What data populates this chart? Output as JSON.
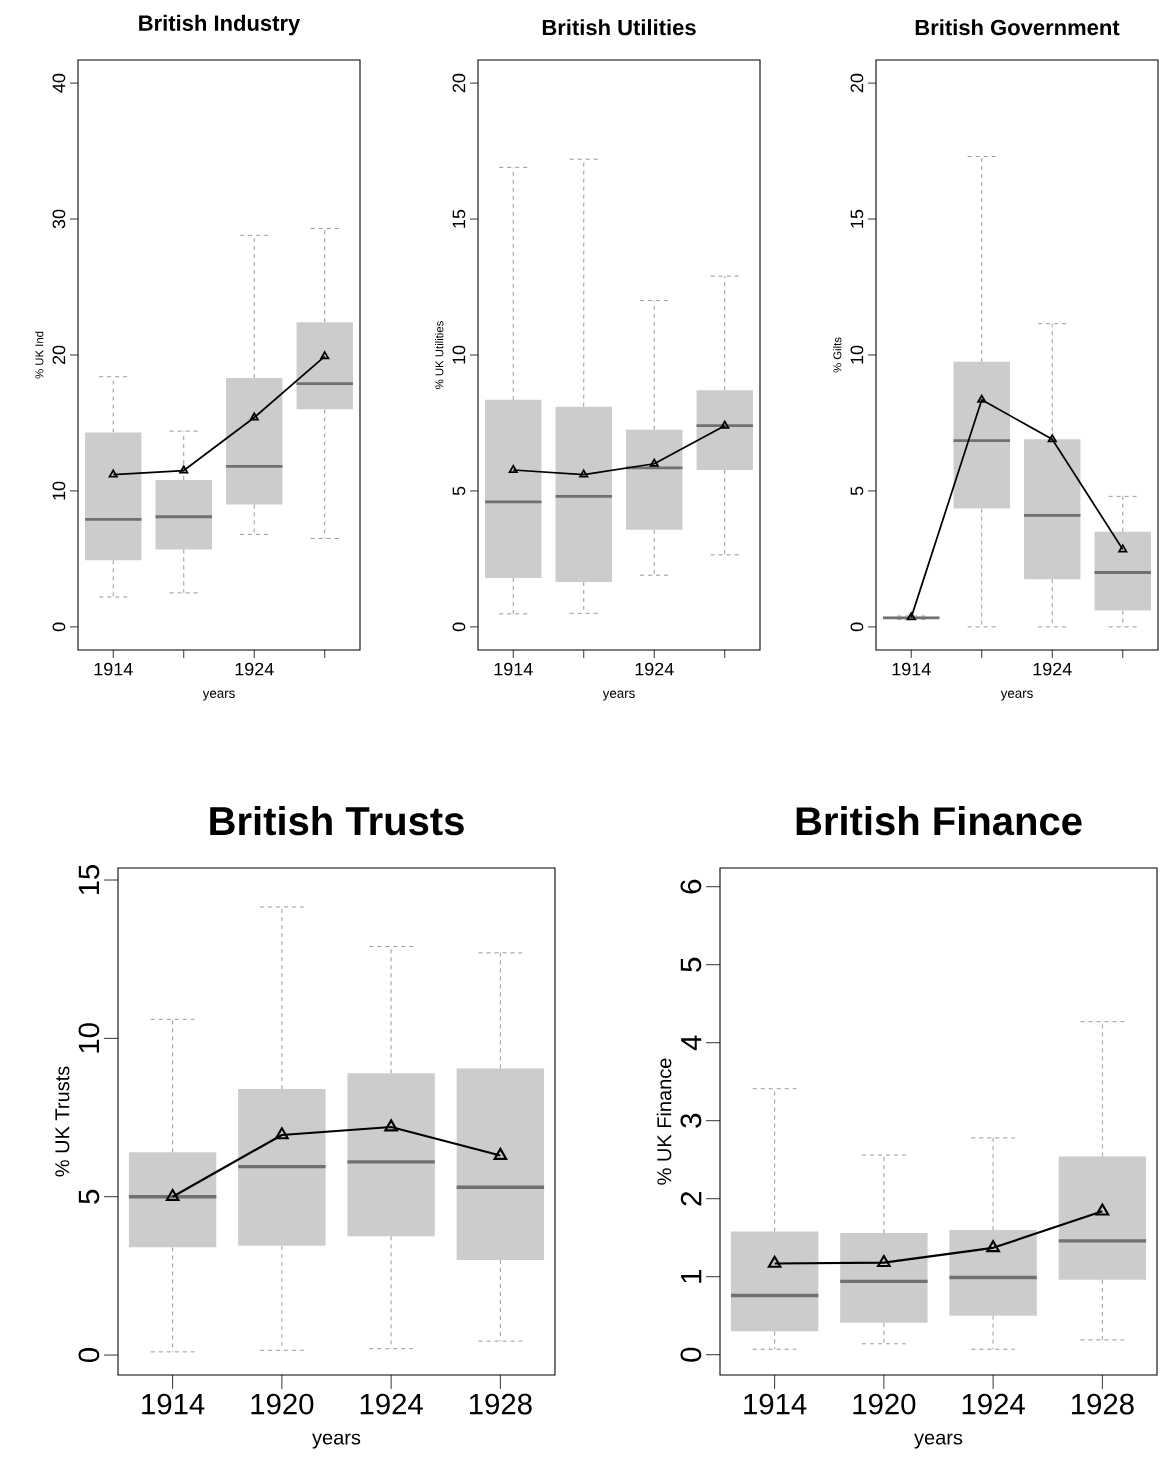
{
  "chart_data": [
    {
      "type": "box",
      "title": "British Industry",
      "xlabel": "years",
      "ylabel": "% UK Ind",
      "categories": [
        "1914",
        null,
        "1924",
        null
      ],
      "ylim": [
        -1.7,
        41.7
      ],
      "yticks": [
        0,
        10,
        20,
        30,
        40
      ],
      "series": [
        {
          "type": "box",
          "color": "#cccccc",
          "boxes": [
            {
              "low": 2.2,
              "q1": 4.9,
              "median": 7.9,
              "q3": 14.3,
              "high": 18.4
            },
            {
              "low": 2.5,
              "q1": 5.7,
              "median": 8.1,
              "q3": 10.8,
              "high": 14.4
            },
            {
              "low": 6.8,
              "q1": 9.0,
              "median": 11.8,
              "q3": 18.3,
              "high": 28.8
            },
            {
              "low": 6.5,
              "q1": 16.0,
              "median": 17.9,
              "q3": 22.4,
              "high": 29.3
            }
          ]
        },
        {
          "type": "line",
          "color": "#000000",
          "marker": "triangle",
          "values": [
            11.2,
            11.5,
            15.4,
            19.9
          ]
        }
      ]
    },
    {
      "type": "box",
      "title": "British Utilities",
      "xlabel": "years",
      "ylabel": "% UK Utilities",
      "categories": [
        "1914",
        null,
        "1924",
        null
      ],
      "ylim": [
        -0.85,
        20.85
      ],
      "yticks": [
        0,
        5,
        10,
        15,
        20
      ],
      "series": [
        {
          "type": "box",
          "color": "#cccccc",
          "boxes": [
            {
              "low": 0.48,
              "q1": 1.8,
              "median": 4.6,
              "q3": 8.35,
              "high": 16.9
            },
            {
              "low": 0.5,
              "q1": 1.65,
              "median": 4.8,
              "q3": 8.1,
              "high": 17.2
            },
            {
              "low": 1.9,
              "q1": 3.57,
              "median": 5.85,
              "q3": 7.25,
              "high": 12.0
            },
            {
              "low": 2.65,
              "q1": 5.77,
              "median": 7.4,
              "q3": 8.7,
              "high": 12.9
            }
          ]
        },
        {
          "type": "line",
          "color": "#000000",
          "marker": "triangle",
          "values": [
            5.77,
            5.6,
            6.0,
            7.4
          ]
        }
      ]
    },
    {
      "type": "box",
      "title": "British Government",
      "xlabel": "years",
      "ylabel": "% Gilts",
      "categories": [
        "1914",
        null,
        "1924",
        null
      ],
      "ylim": [
        -0.85,
        20.85
      ],
      "yticks": [
        0,
        5,
        10,
        15,
        20
      ],
      "series": [
        {
          "type": "box",
          "color": "#cccccc",
          "boxes": [
            {
              "low": 0.28,
              "q1": 0.3,
              "median": 0.33,
              "q3": 0.37,
              "high": 0.4
            },
            {
              "low": 0.0,
              "q1": 4.35,
              "median": 6.85,
              "q3": 9.75,
              "high": 17.3
            },
            {
              "low": 0.0,
              "q1": 1.75,
              "median": 4.1,
              "q3": 6.9,
              "high": 11.15
            },
            {
              "low": 0.0,
              "q1": 0.6,
              "median": 2.0,
              "q3": 3.5,
              "high": 4.8
            }
          ]
        },
        {
          "type": "line",
          "color": "#000000",
          "marker": "triangle",
          "values": [
            0.35,
            8.35,
            6.9,
            2.85
          ]
        }
      ]
    },
    {
      "type": "box",
      "title": "British Trusts",
      "xlabel": "years",
      "ylabel": "% UK Trusts",
      "categories": [
        "1914",
        "1920",
        "1924",
        "1928"
      ],
      "ylim": [
        -0.63,
        15.38
      ],
      "yticks": [
        0,
        5,
        10,
        15
      ],
      "series": [
        {
          "type": "box",
          "color": "#cccccc",
          "boxes": [
            {
              "low": 0.1,
              "q1": 3.4,
              "median": 5.0,
              "q3": 6.4,
              "high": 10.6
            },
            {
              "low": 0.15,
              "q1": 3.45,
              "median": 5.95,
              "q3": 8.4,
              "high": 14.15
            },
            {
              "low": 0.2,
              "q1": 3.75,
              "median": 6.1,
              "q3": 8.9,
              "high": 12.9
            },
            {
              "low": 0.44,
              "q1": 3.0,
              "median": 5.3,
              "q3": 9.05,
              "high": 12.7
            }
          ]
        },
        {
          "type": "line",
          "color": "#000000",
          "marker": "triangle",
          "values": [
            5.0,
            6.95,
            7.2,
            6.3
          ]
        }
      ]
    },
    {
      "type": "box",
      "title": "British Finance",
      "xlabel": "years",
      "ylabel": "% UK Finance",
      "categories": [
        "1914",
        "1920",
        "1924",
        "1928"
      ],
      "ylim": [
        -0.26,
        6.24
      ],
      "yticks": [
        0,
        1,
        2,
        3,
        4,
        5,
        6
      ],
      "series": [
        {
          "type": "box",
          "color": "#cccccc",
          "boxes": [
            {
              "low": 0.07,
              "q1": 0.3,
              "median": 0.76,
              "q3": 1.58,
              "high": 3.41
            },
            {
              "low": 0.14,
              "q1": 0.41,
              "median": 0.94,
              "q3": 1.56,
              "high": 2.56
            },
            {
              "low": 0.07,
              "q1": 0.5,
              "median": 0.99,
              "q3": 1.6,
              "high": 2.78
            },
            {
              "low": 0.19,
              "q1": 0.96,
              "median": 1.46,
              "q3": 2.54,
              "high": 4.27
            }
          ]
        },
        {
          "type": "line",
          "color": "#000000",
          "marker": "triangle",
          "values": [
            1.17,
            1.18,
            1.37,
            1.84
          ]
        }
      ]
    }
  ]
}
